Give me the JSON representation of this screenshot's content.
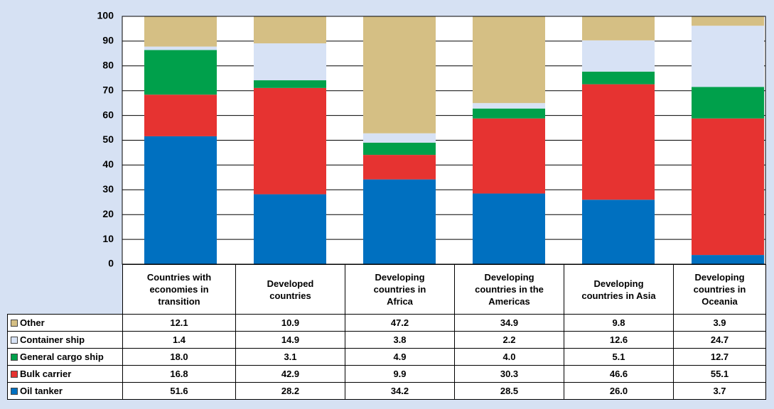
{
  "chart_data": {
    "type": "stacked-bar",
    "categories": [
      "Countries with economies in transition",
      "Developed countries",
      "Developing countries in Africa",
      "Developing countries in the Americas",
      "Developing countries in Asia",
      "Developing countries in Oceania"
    ],
    "series": [
      {
        "name": "Other",
        "color": "#d5bf84",
        "values": [
          12.1,
          10.9,
          47.2,
          34.9,
          9.8,
          3.9
        ],
        "value_labels": [
          "12.1",
          "10.9",
          "47.2",
          "34.9",
          "9.8",
          "3.9"
        ]
      },
      {
        "name": "Container ship",
        "color": "#d7e2f5",
        "values": [
          1.4,
          14.9,
          3.8,
          2.2,
          12.6,
          24.7
        ],
        "value_labels": [
          "1.4",
          "14.9",
          "3.8",
          "2.2",
          "12.6",
          "24.7"
        ]
      },
      {
        "name": "General cargo ship",
        "color": "#00a04b",
        "values": [
          18.0,
          3.1,
          4.9,
          4.0,
          5.1,
          12.7
        ],
        "value_labels": [
          "18.0",
          "3.1",
          "4.9",
          "4.0",
          "5.1",
          "12.7"
        ]
      },
      {
        "name": "Bulk carrier",
        "color": "#e63331",
        "values": [
          16.8,
          42.9,
          9.9,
          30.3,
          46.6,
          55.1
        ],
        "value_labels": [
          "16.8",
          "42.9",
          "9.9",
          "30.3",
          "46.6",
          "55.1"
        ]
      },
      {
        "name": "Oil tanker",
        "color": "#0070c0",
        "values": [
          51.6,
          28.2,
          34.2,
          28.5,
          26.0,
          3.7
        ],
        "value_labels": [
          "51.6",
          "28.2",
          "34.2",
          "28.5",
          "26.0",
          "3.7"
        ]
      }
    ],
    "ylim": [
      0,
      100
    ],
    "yticks": [
      0,
      10,
      20,
      30,
      40,
      50,
      60,
      70,
      80,
      90,
      100
    ],
    "grid": true
  }
}
